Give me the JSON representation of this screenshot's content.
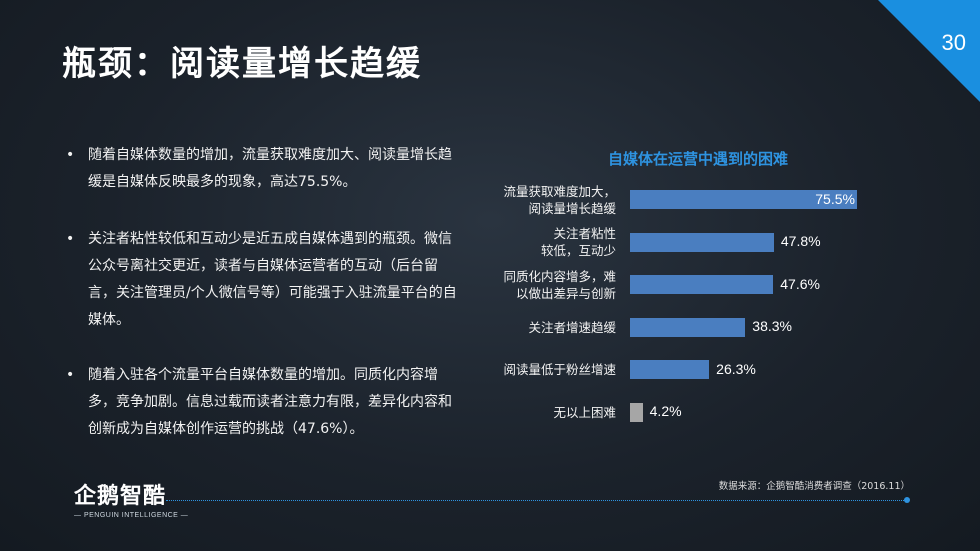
{
  "page": {
    "title": "瓶颈：阅读量增长趋缓",
    "number": "30"
  },
  "bullets": [
    {
      "text": "随着自媒体数量的增加，流量获取难度加大、阅读量增长趋缓是自媒体反映最多的现象，高达75.5%。"
    },
    {
      "text": "关注者粘性较低和互动少是近五成自媒体遇到的瓶颈。微信公众号离社交更近，读者与自媒体运营者的互动（后台留言，关注管理员/个人微信号等）可能强于入驻流量平台的自媒体。"
    },
    {
      "text": "随着入驻各个流量平台自媒体数量的增加。同质化内容增多，竞争加剧。信息过载而读者注意力有限，差异化内容和创新成为自媒体创作运营的挑战（47.6%）。"
    }
  ],
  "chart_data": {
    "type": "bar",
    "orientation": "horizontal",
    "title": "自媒体在运营中遇到的困难",
    "categories": [
      [
        "流量获取难度加大，",
        "阅读量增长趋缓"
      ],
      [
        "关注者粘性",
        "较低，互动少"
      ],
      [
        "同质化内容增多，难",
        "以做出差异与创新"
      ],
      [
        "关注者增速趋缓"
      ],
      [
        "阅读量低于粉丝增速"
      ],
      [
        "无以上困难"
      ]
    ],
    "values": [
      75.5,
      47.8,
      47.6,
      38.3,
      26.3,
      4.2
    ],
    "value_labels": [
      "75.5%",
      "47.8%",
      "47.6%",
      "38.3%",
      "26.3%",
      "4.2%"
    ],
    "bar_colors": [
      "#4a7ec0",
      "#4a7ec0",
      "#4a7ec0",
      "#4a7ec0",
      "#4a7ec0",
      "#a6a6a6"
    ],
    "xlim": [
      0,
      100
    ],
    "grid": false
  },
  "footer": {
    "source": "数据来源：企鹅智酷消费者调查（2016.11）",
    "logo_cn": "企鹅智酷",
    "logo_en": "— PENGUIN INTELLIGENCE —"
  },
  "colors": {
    "accent": "#1a8fe0",
    "chart_title": "#2e93e0"
  }
}
